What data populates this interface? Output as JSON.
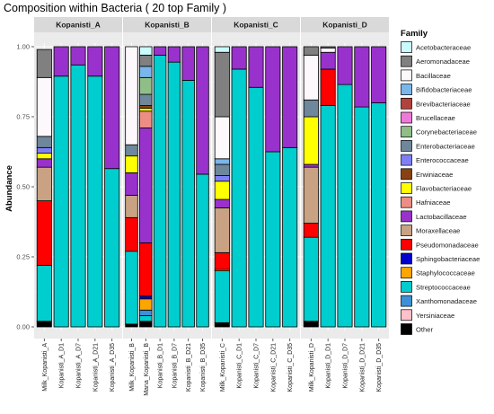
{
  "chart_data": {
    "type": "bar",
    "stacked": true,
    "title": "Composition within Bacteria ( 20 top Family )",
    "ylabel": "Abundance",
    "xlabel": "",
    "ylim": [
      0,
      1
    ],
    "yticks": [
      "0.00",
      "0.25",
      "0.50",
      "0.75",
      "1.00"
    ],
    "legend": {
      "title": "Family",
      "placement": "right"
    },
    "families": [
      {
        "name": "Acetobacteraceae",
        "color": "#c9fbfd"
      },
      {
        "name": "Aeromonadaceae",
        "color": "#808080"
      },
      {
        "name": "Bacillaceae",
        "color": "#fdf8fb"
      },
      {
        "name": "Bifidobacteriaceae",
        "color": "#79b6eb"
      },
      {
        "name": "Brevibacteriaceae",
        "color": "#b2423c"
      },
      {
        "name": "Brucellaceae",
        "color": "#ee7ad8"
      },
      {
        "name": "Corynebacteriaceae",
        "color": "#8fbf87"
      },
      {
        "name": "Enterobacteriaceae",
        "color": "#6f879b"
      },
      {
        "name": "Enterococcaceae",
        "color": "#7f7ff5"
      },
      {
        "name": "Erwiniaceae",
        "color": "#8a4112"
      },
      {
        "name": "Flavobacteriaceae",
        "color": "#ffff00"
      },
      {
        "name": "Hafniaceae",
        "color": "#ec8e84"
      },
      {
        "name": "Lactobacillaceae",
        "color": "#9932cc"
      },
      {
        "name": "Moraxellaceae",
        "color": "#c8a283"
      },
      {
        "name": "Pseudomonadaceae",
        "color": "#ff0000"
      },
      {
        "name": "Sphingobacteriaceae",
        "color": "#0000cd"
      },
      {
        "name": "Staphylococcaceae",
        "color": "#ffa500"
      },
      {
        "name": "Streptococcaceae",
        "color": "#00cdcd"
      },
      {
        "name": "Xanthomonadaceae",
        "color": "#3d8fd6"
      },
      {
        "name": "Yersiniaceae",
        "color": "#ffc0cb"
      },
      {
        "name": "Other",
        "color": "#000000"
      }
    ],
    "stack_order_bottom_to_top": [
      "Other",
      "Streptococcaceae",
      "Xanthomonadaceae",
      "Staphylococcaceae",
      "Sphingobacteriaceae",
      "Pseudomonadaceae",
      "Moraxellaceae",
      "Lactobacillaceae",
      "Hafniaceae",
      "Flavobacteriaceae",
      "Erwiniaceae",
      "Enterococcaceae",
      "Enterobacteriaceae",
      "Corynebacteriaceae",
      "Brucellaceae",
      "Brevibacteriaceae",
      "Bifidobacteriaceae",
      "Bacillaceae",
      "Aeromonadaceae",
      "Acetobacteraceae",
      "Yersiniaceae"
    ],
    "panels": [
      {
        "name": "Kopanisti_A",
        "samples": [
          {
            "label": "Milk_Kopanisti_A",
            "values": {
              "Other": 0.02,
              "Streptococcaceae": 0.2,
              "Pseudomonadaceae": 0.23,
              "Moraxellaceae": 0.12,
              "Lactobacillaceae": 0.03,
              "Flavobacteriaceae": 0.02,
              "Enterococcaceae": 0.02,
              "Enterobacteriaceae": 0.04,
              "Bacillaceae": 0.21,
              "Aeromonadaceae": 0.1
            }
          },
          {
            "label": "Kopanisti_A_D1",
            "values": {
              "Streptococcaceae": 0.895,
              "Lactobacillaceae": 0.105
            }
          },
          {
            "label": "Kopanisti_A_D7",
            "values": {
              "Streptococcaceae": 0.935,
              "Lactobacillaceae": 0.065
            }
          },
          {
            "label": "Kopanisti_A_D21",
            "values": {
              "Streptococcaceae": 0.895,
              "Lactobacillaceae": 0.105
            }
          },
          {
            "label": "Kopanisti_A_D35",
            "values": {
              "Streptococcaceae": 0.565,
              "Lactobacillaceae": 0.435
            }
          }
        ]
      },
      {
        "name": "Kopanisti_B",
        "samples": [
          {
            "label": "Milk_Kopanisti_B",
            "values": {
              "Other": 0.01,
              "Streptococcaceae": 0.26,
              "Pseudomonadaceae": 0.12,
              "Moraxellaceae": 0.08,
              "Lactobacillaceae": 0.08,
              "Flavobacteriaceae": 0.06,
              "Enterobacteriaceae": 0.04,
              "Bacillaceae": 0.35
            }
          },
          {
            "label": "Mana_Kopanisti_B",
            "values": {
              "Other": 0.02,
              "Sphingobacteriaceae": 0.01,
              "Streptococcaceae": 0.02,
              "Xanthomonadaceae": 0.02,
              "Staphylococcaceae": 0.04,
              "Pseudomonadaceae": 0.19,
              "Hafniaceae": 0.06,
              "Lactobacillaceae": 0.41,
              "Flavobacteriaceae": 0.01,
              "Erwiniaceae": 0.01,
              "Corynebacteriaceae": 0.06,
              "Enterobacteriaceae": 0.04,
              "Bifidobacteriaceae": 0.04,
              "Aeromonadaceae": 0.04,
              "Acetobacteraceae": 0.03
            }
          },
          {
            "label": "Kopanisti_B_D1",
            "values": {
              "Streptococcaceae": 0.97,
              "Lactobacillaceae": 0.03
            }
          },
          {
            "label": "Kopanisti_B_D7",
            "values": {
              "Streptococcaceae": 0.945,
              "Lactobacillaceae": 0.055
            }
          },
          {
            "label": "Kopanisti_B_D21",
            "values": {
              "Streptococcaceae": 0.88,
              "Lactobacillaceae": 0.12
            }
          },
          {
            "label": "Kopanisti_B_D35",
            "values": {
              "Streptococcaceae": 0.545,
              "Lactobacillaceae": 0.455
            }
          }
        ]
      },
      {
        "name": "Kopanisti_C",
        "samples": [
          {
            "label": "Milk_Kopanisti_C",
            "values": {
              "Other": 0.015,
              "Streptococcaceae": 0.185,
              "Staphylococcaceae": 0.005,
              "Pseudomonadaceae": 0.06,
              "Moraxellaceae": 0.16,
              "Lactobacillaceae": 0.03,
              "Flavobacteriaceae": 0.065,
              "Enterococcaceae": 0.02,
              "Enterobacteriaceae": 0.04,
              "Bacillaceae": 0.15,
              "Bifidobacteriaceae": 0.02,
              "Aeromonadaceae": 0.23,
              "Acetobacteraceae": 0.02
            }
          },
          {
            "label": "Kopanisti_C_D1",
            "values": {
              "Streptococcaceae": 0.92,
              "Lactobacillaceae": 0.08
            }
          },
          {
            "label": "Kopanisti_C_D7",
            "values": {
              "Streptococcaceae": 0.855,
              "Lactobacillaceae": 0.145
            }
          },
          {
            "label": "Kopanisti_C_D21",
            "values": {
              "Streptococcaceae": 0.625,
              "Lactobacillaceae": 0.375
            }
          },
          {
            "label": "Kopanisti_C_D35",
            "values": {
              "Streptococcaceae": 0.64,
              "Lactobacillaceae": 0.36
            }
          }
        ]
      },
      {
        "name": "Kopanisti_D",
        "samples": [
          {
            "label": "Milk_Kopanisti_D",
            "values": {
              "Other": 0.02,
              "Streptococcaceae": 0.3,
              "Pseudomonadaceae": 0.05,
              "Moraxellaceae": 0.2,
              "Lactobacillaceae": 0.01,
              "Flavobacteriaceae": 0.17,
              "Enterobacteriaceae": 0.06,
              "Bacillaceae": 0.16,
              "Aeromonadaceae": 0.03
            }
          },
          {
            "label": "Kopanisti_D_D1",
            "values": {
              "Streptococcaceae": 0.79,
              "Pseudomonadaceae": 0.13,
              "Lactobacillaceae": 0.06,
              "Bacillaceae": 0.015,
              "Aeromonadaceae": 0.005
            }
          },
          {
            "label": "Kopanisti_D_D7",
            "values": {
              "Streptococcaceae": 0.865,
              "Lactobacillaceae": 0.135
            }
          },
          {
            "label": "Kopanisti_D_D21",
            "values": {
              "Streptococcaceae": 0.785,
              "Lactobacillaceae": 0.215
            }
          },
          {
            "label": "Kopanisti_D_D35",
            "values": {
              "Streptococcaceae": 0.8,
              "Lactobacillaceae": 0.2
            }
          }
        ]
      }
    ]
  }
}
